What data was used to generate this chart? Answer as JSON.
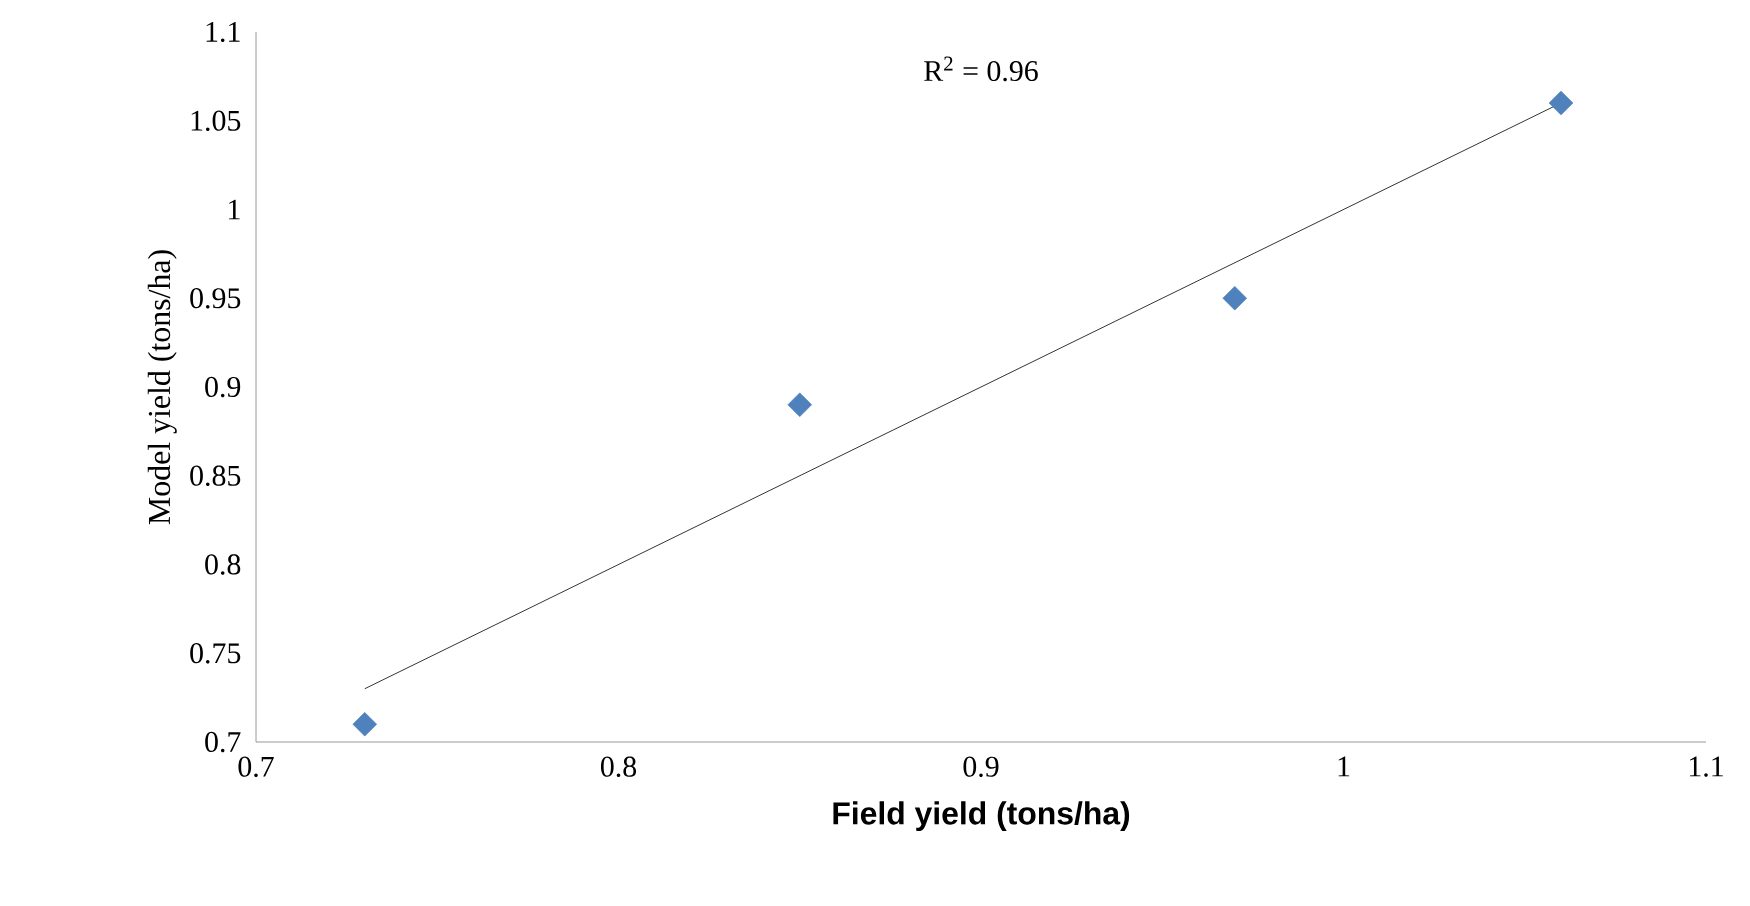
{
  "chart_data": {
    "type": "scatter",
    "xlabel": "Field yield (tons/ha)",
    "ylabel": "Model yield (tons/ha)",
    "series": [
      {
        "type": "scatter",
        "color": "#4f81bd",
        "marker": "diamond",
        "x": [
          0.73,
          0.85,
          0.97,
          1.06
        ],
        "values": [
          0.71,
          0.89,
          0.95,
          1.06
        ]
      },
      {
        "type": "line",
        "color": "#000000",
        "marker": "none",
        "line_style": "solid",
        "x": [
          0.73,
          1.06
        ],
        "values": [
          0.73,
          1.06
        ]
      }
    ],
    "xlim": [
      0.7,
      1.1
    ],
    "ylim": [
      0.7,
      1.1
    ],
    "xticks": [
      0.7,
      0.8,
      0.9,
      1,
      1.1
    ],
    "yticks": [
      0.7,
      0.75,
      0.8,
      0.85,
      0.9,
      0.95,
      1,
      1.05,
      1.1
    ],
    "annotations": [
      "R$^{2}$ = 0.96"
    ],
    "grid": false
  }
}
